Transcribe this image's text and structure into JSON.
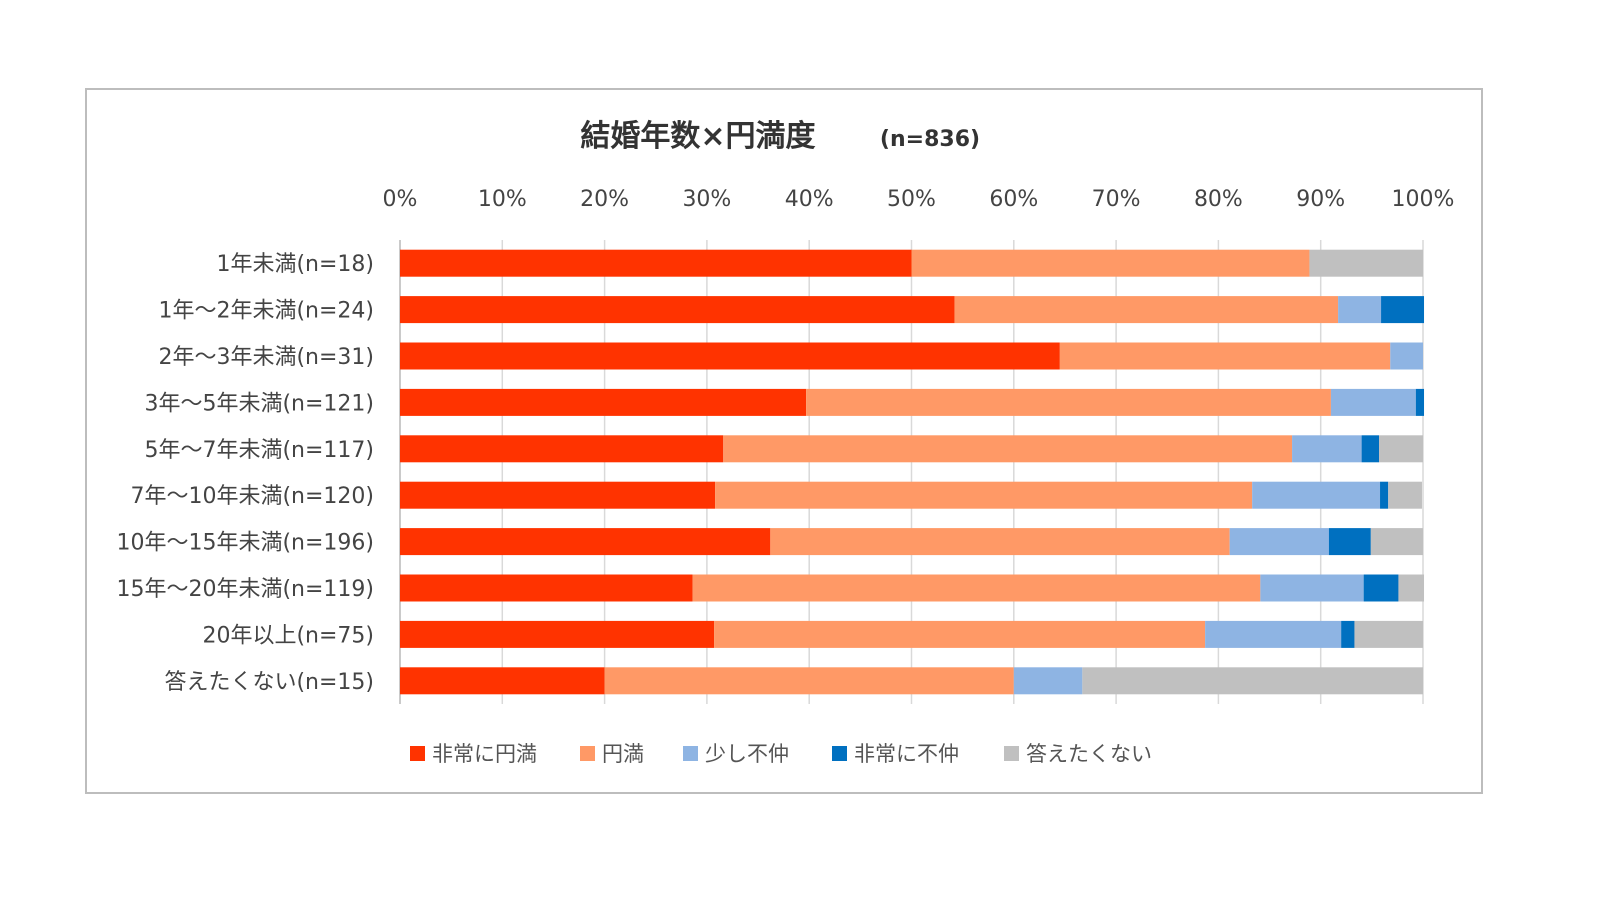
{
  "chart_data": {
    "type": "bar",
    "orientation": "horizontal",
    "stacked": true,
    "title": "結婚年数×円満度",
    "subtitle": "(n=836)",
    "xlim": [
      0,
      100
    ],
    "x_ticks": [
      "0%",
      "10%",
      "20%",
      "30%",
      "40%",
      "50%",
      "60%",
      "70%",
      "80%",
      "90%",
      "100%"
    ],
    "grid": true,
    "legend_position": "bottom",
    "categories": [
      "1年未満(n=18)",
      "1年～2年未満(n=24)",
      "2年～3年未満(n=31)",
      "3年～5年未満(n=121)",
      "5年～7年未満(n=117)",
      "7年～10年未満(n=120)",
      "10年～15年未満(n=196)",
      "15年～20年未満(n=119)",
      "20年以上(n=75)",
      "答えたくない(n=15)"
    ],
    "series": [
      {
        "name": "非常に円満",
        "color": "#ff3300",
        "values": [
          50.0,
          54.2,
          64.5,
          39.7,
          31.6,
          30.8,
          36.2,
          28.6,
          30.7,
          20.0
        ]
      },
      {
        "name": "円満",
        "color": "#ff9966",
        "values": [
          38.9,
          37.5,
          32.3,
          51.3,
          55.6,
          52.5,
          44.9,
          55.5,
          48.0,
          40.0
        ]
      },
      {
        "name": "少し不仲",
        "color": "#8eb4e3",
        "values": [
          0.0,
          4.2,
          3.2,
          8.3,
          6.8,
          12.5,
          9.7,
          10.1,
          13.3,
          6.7
        ]
      },
      {
        "name": "非常に不仲",
        "color": "#0070c0",
        "values": [
          0.0,
          4.2,
          0.0,
          0.8,
          1.7,
          0.8,
          4.1,
          3.4,
          1.3,
          0.0
        ]
      },
      {
        "name": "答えたくない",
        "color": "#c0c0c0",
        "values": [
          11.1,
          0.0,
          0.0,
          0.0,
          4.3,
          3.3,
          5.1,
          2.5,
          6.7,
          33.3
        ]
      }
    ]
  }
}
